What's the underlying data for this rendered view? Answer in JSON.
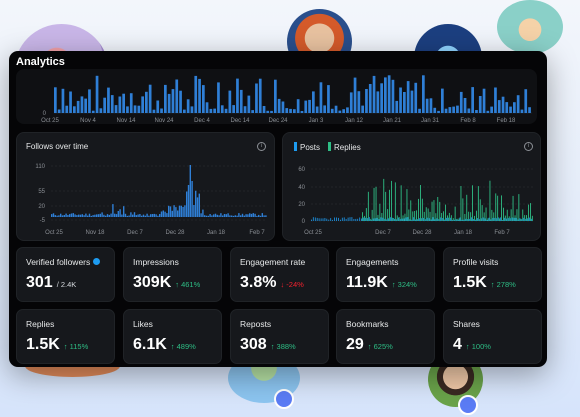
{
  "panel": {
    "title": "Analytics"
  },
  "top_chart": {
    "type": "bar",
    "ytick": "0",
    "xticks": [
      "Oct 25",
      "Nov 4",
      "Nov 14",
      "Nov 24",
      "Dec 4",
      "Dec 14",
      "Dec 24",
      "Jan 3",
      "Jan 12",
      "Jan 21",
      "Jan 31",
      "Feb 8",
      "Feb 18"
    ]
  },
  "follows_chart": {
    "title": "Follows over time",
    "yticks": [
      "110",
      "55",
      "20",
      "-5"
    ],
    "xticks": [
      "Oct 25",
      "Nov 18",
      "Dec 7",
      "Dec 28",
      "Jan 18",
      "Feb 7"
    ]
  },
  "posts_chart": {
    "legend": [
      "Posts",
      "Replies"
    ],
    "colors": {
      "posts": "#1d9bf0",
      "replies": "#2ebd85"
    },
    "yticks": [
      "60",
      "40",
      "20",
      "0"
    ],
    "xticks": [
      "Oct 25",
      "Dec 7",
      "Dec 28",
      "Jan 18",
      "Feb 7"
    ]
  },
  "stats": [
    {
      "label": "Verified followers",
      "value": "301",
      "sub": "/ 2.4K",
      "trend": "none",
      "verified": true
    },
    {
      "label": "Impressions",
      "value": "309K",
      "sub": "↑ 461%",
      "trend": "up"
    },
    {
      "label": "Engagement rate",
      "value": "3.8%",
      "sub": "↓ -24%",
      "trend": "down"
    },
    {
      "label": "Engagements",
      "value": "11.9K",
      "sub": "↑ 324%",
      "trend": "up"
    },
    {
      "label": "Profile visits",
      "value": "1.5K",
      "sub": "↑ 278%",
      "trend": "up"
    },
    {
      "label": "Replies",
      "value": "1.5K",
      "sub": "↑ 115%",
      "trend": "up"
    },
    {
      "label": "Likes",
      "value": "6.1K",
      "sub": "↑ 489%",
      "trend": "up"
    },
    {
      "label": "Reposts",
      "value": "308",
      "sub": "↑ 388%",
      "trend": "up"
    },
    {
      "label": "Bookmarks",
      "value": "29",
      "sub": "↑ 625%",
      "trend": "up"
    },
    {
      "label": "Shares",
      "value": "4",
      "sub": "↑ 100%",
      "trend": "up"
    }
  ],
  "colors": {
    "accent": "#1d9bf0",
    "up": "#2ebd85",
    "down": "#f4212e",
    "panel_bg": "#050507",
    "card_bg": "#16181c"
  }
}
